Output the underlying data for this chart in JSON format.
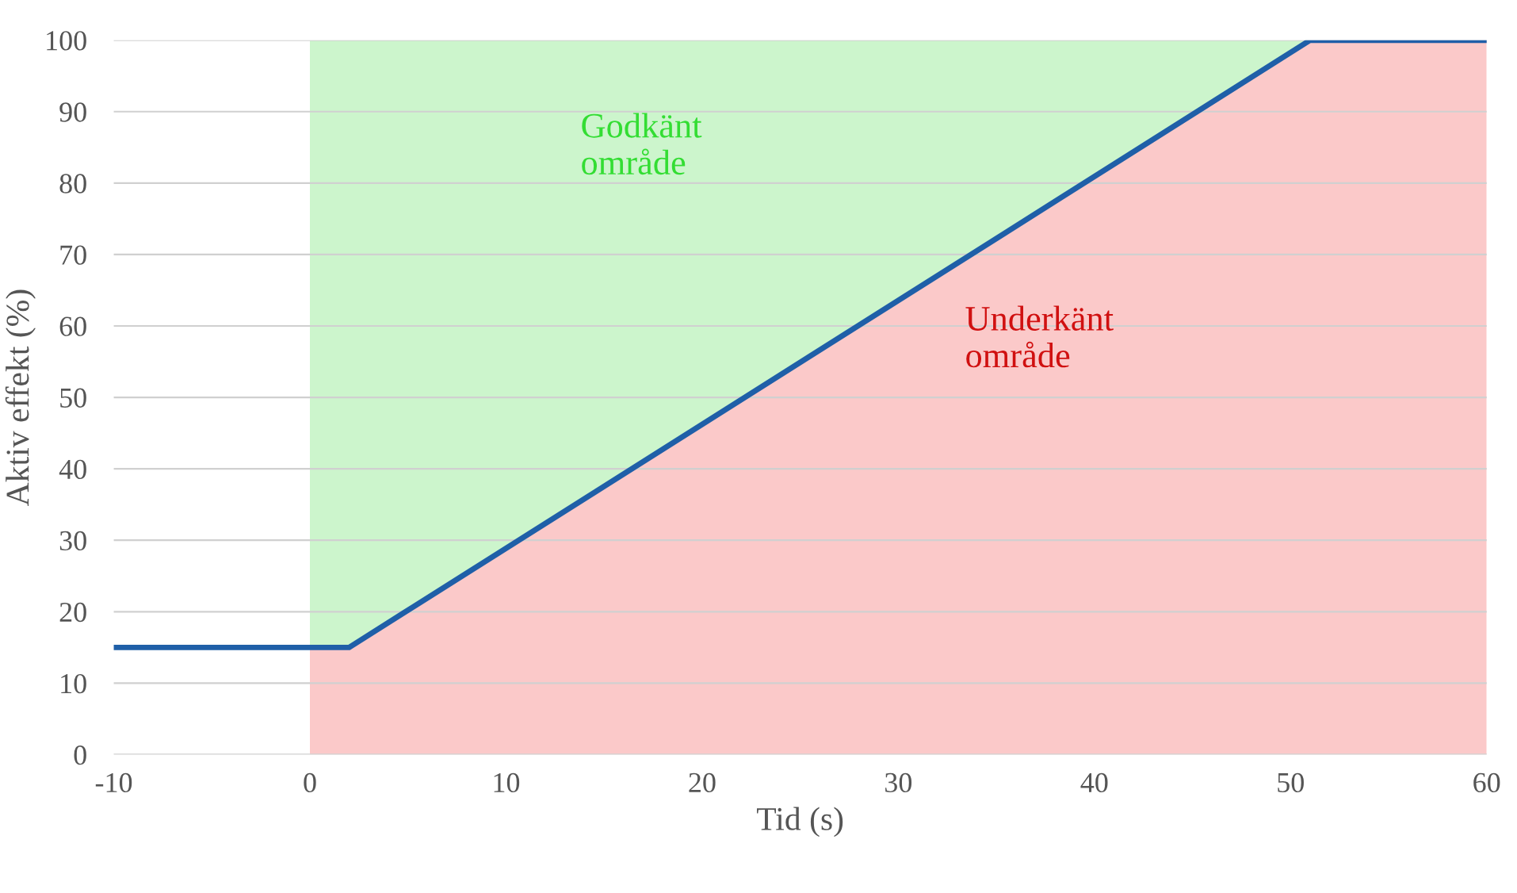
{
  "chart_data": {
    "type": "area",
    "xlabel": "Tid (s)",
    "ylabel": "Aktiv effekt (%)",
    "stacked": true,
    "series": [
      {
        "color": "#fbc9c9",
        "x": [
          0,
          2,
          51,
          60
        ],
        "values": [
          15,
          15,
          100,
          100
        ]
      },
      {
        "color": "#ccf5cc",
        "x": [
          0,
          2,
          51,
          60
        ],
        "values": [
          85,
          85,
          0,
          0
        ]
      },
      {
        "type": "line",
        "color": "#1f5fa8",
        "x": [
          -10,
          2,
          51,
          60
        ],
        "values": [
          15,
          15,
          100,
          100
        ]
      }
    ],
    "annotations": [
      "Godkänt\nområde",
      "Underkänt\nområde"
    ],
    "xlim": [
      -10,
      60
    ],
    "xticks": [
      -10,
      0,
      10,
      20,
      30,
      40,
      50,
      60
    ],
    "ylim": [
      0,
      100
    ],
    "yticks": [
      0,
      10,
      20,
      30,
      40,
      50,
      60,
      70,
      80,
      90,
      100
    ],
    "grid": "y",
    "legend": false
  }
}
